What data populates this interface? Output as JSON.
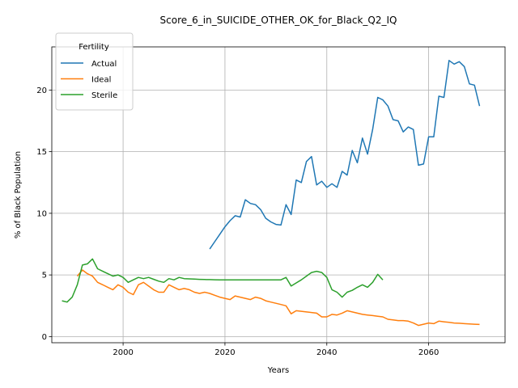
{
  "chart_data": {
    "type": "line",
    "title": "Score_6_in_SUICIDE_OTHER_OK_for_Black_Q2_IQ",
    "xlabel": "Years",
    "ylabel": "% of Black Population",
    "xlim": [
      1986,
      2075
    ],
    "ylim": [
      -0.5,
      23.5
    ],
    "xticks": [
      2000,
      2020,
      2040,
      2060
    ],
    "yticks": [
      0,
      5,
      10,
      15,
      20
    ],
    "grid": true,
    "legend": {
      "title": "Fertility",
      "placement": "upper left"
    },
    "series": [
      {
        "name": "Actual",
        "color": "#1f77b4",
        "x": [
          2017,
          2018,
          2019,
          2020,
          2021,
          2022,
          2023,
          2024,
          2025,
          2026,
          2027,
          2028,
          2029,
          2030,
          2031,
          2032,
          2033,
          2034,
          2035,
          2036,
          2037,
          2038,
          2039,
          2040,
          2041,
          2042,
          2043,
          2044,
          2045,
          2046,
          2047,
          2048,
          2049,
          2050,
          2051,
          2052,
          2053,
          2054,
          2055,
          2056,
          2057,
          2058,
          2059,
          2060,
          2061,
          2062,
          2063,
          2064,
          2065,
          2066,
          2067,
          2068,
          2069,
          2070
        ],
        "values": [
          7.1,
          7.7,
          8.3,
          8.9,
          9.4,
          9.8,
          9.7,
          11.1,
          10.8,
          10.7,
          10.3,
          9.6,
          9.3,
          9.1,
          9.05,
          10.7,
          9.9,
          12.7,
          12.5,
          14.2,
          14.6,
          12.3,
          12.6,
          12.1,
          12.4,
          12.1,
          13.4,
          13.1,
          15.1,
          14.1,
          16.1,
          14.8,
          16.8,
          19.4,
          19.2,
          18.7,
          17.6,
          17.5,
          16.6,
          17.0,
          16.8,
          13.9,
          14.0,
          16.2,
          16.2,
          19.5,
          19.4,
          22.4,
          22.1,
          22.3,
          21.9,
          20.5,
          20.4,
          18.7
        ]
      },
      {
        "name": "Ideal",
        "color": "#ff7f0e",
        "x": [
          1991,
          1992,
          1993,
          1994,
          1995,
          1996,
          1997,
          1998,
          1999,
          2000,
          2001,
          2002,
          2003,
          2004,
          2005,
          2006,
          2007,
          2008,
          2009,
          2010,
          2011,
          2012,
          2013,
          2014,
          2015,
          2016,
          2017,
          2018,
          2019,
          2020,
          2021,
          2022,
          2023,
          2024,
          2025,
          2026,
          2027,
          2028,
          2029,
          2030,
          2031,
          2032,
          2033,
          2034,
          2035,
          2036,
          2037,
          2038,
          2039,
          2040,
          2041,
          2042,
          2043,
          2044,
          2045,
          2046,
          2047,
          2048,
          2049,
          2050,
          2051,
          2052,
          2053,
          2054,
          2055,
          2056,
          2057,
          2058,
          2059,
          2060,
          2061,
          2062,
          2063,
          2064,
          2065,
          2066,
          2067,
          2068,
          2069,
          2070
        ],
        "values": [
          4.9,
          5.4,
          5.1,
          4.9,
          4.4,
          4.2,
          4.0,
          3.8,
          4.2,
          4.0,
          3.6,
          3.4,
          4.2,
          4.4,
          4.1,
          3.8,
          3.6,
          3.6,
          4.2,
          4.0,
          3.8,
          3.9,
          3.8,
          3.6,
          3.5,
          3.6,
          3.5,
          3.35,
          3.2,
          3.1,
          3.0,
          3.3,
          3.2,
          3.1,
          3.0,
          3.2,
          3.1,
          2.9,
          2.8,
          2.7,
          2.6,
          2.5,
          1.85,
          2.1,
          2.05,
          2.0,
          1.95,
          1.9,
          1.6,
          1.6,
          1.8,
          1.75,
          1.9,
          2.1,
          2.0,
          1.9,
          1.8,
          1.75,
          1.7,
          1.65,
          1.6,
          1.4,
          1.35,
          1.3,
          1.3,
          1.25,
          1.1,
          0.9,
          1.0,
          1.1,
          1.05,
          1.25,
          1.2,
          1.15,
          1.1,
          1.08,
          1.05,
          1.02,
          1.0,
          0.98
        ]
      },
      {
        "name": "Sterile",
        "color": "#2ca02c",
        "x": [
          1988,
          1989,
          1990,
          1991,
          1992,
          1993,
          1994,
          1995,
          1996,
          1997,
          1998,
          1999,
          2000,
          2001,
          2002,
          2003,
          2004,
          2005,
          2006,
          2007,
          2008,
          2009,
          2010,
          2011,
          2012,
          2013,
          2014,
          2015,
          2016,
          2017,
          2018,
          2019,
          2020,
          2021,
          2022,
          2023,
          2024,
          2025,
          2026,
          2027,
          2028,
          2029,
          2030,
          2031,
          2032,
          2033,
          2034,
          2035,
          2036,
          2037,
          2038,
          2039,
          2040,
          2041,
          2042,
          2043,
          2044,
          2045,
          2046,
          2047,
          2048,
          2049,
          2050,
          2051
        ],
        "values": [
          2.9,
          2.8,
          3.2,
          4.2,
          5.8,
          5.9,
          6.3,
          5.5,
          5.3,
          5.1,
          4.9,
          5.0,
          4.8,
          4.4,
          4.6,
          4.8,
          4.7,
          4.8,
          4.65,
          4.5,
          4.4,
          4.7,
          4.6,
          4.8,
          4.7,
          4.68,
          4.66,
          4.64,
          4.63,
          4.62,
          4.61,
          4.6,
          4.6,
          4.6,
          4.6,
          4.6,
          4.6,
          4.6,
          4.6,
          4.6,
          4.6,
          4.6,
          4.6,
          4.6,
          4.8,
          4.1,
          4.35,
          4.6,
          4.9,
          5.2,
          5.3,
          5.2,
          4.8,
          3.8,
          3.6,
          3.2,
          3.6,
          3.75,
          4.0,
          4.2,
          4.0,
          4.4,
          5.05,
          4.6
        ]
      }
    ]
  }
}
